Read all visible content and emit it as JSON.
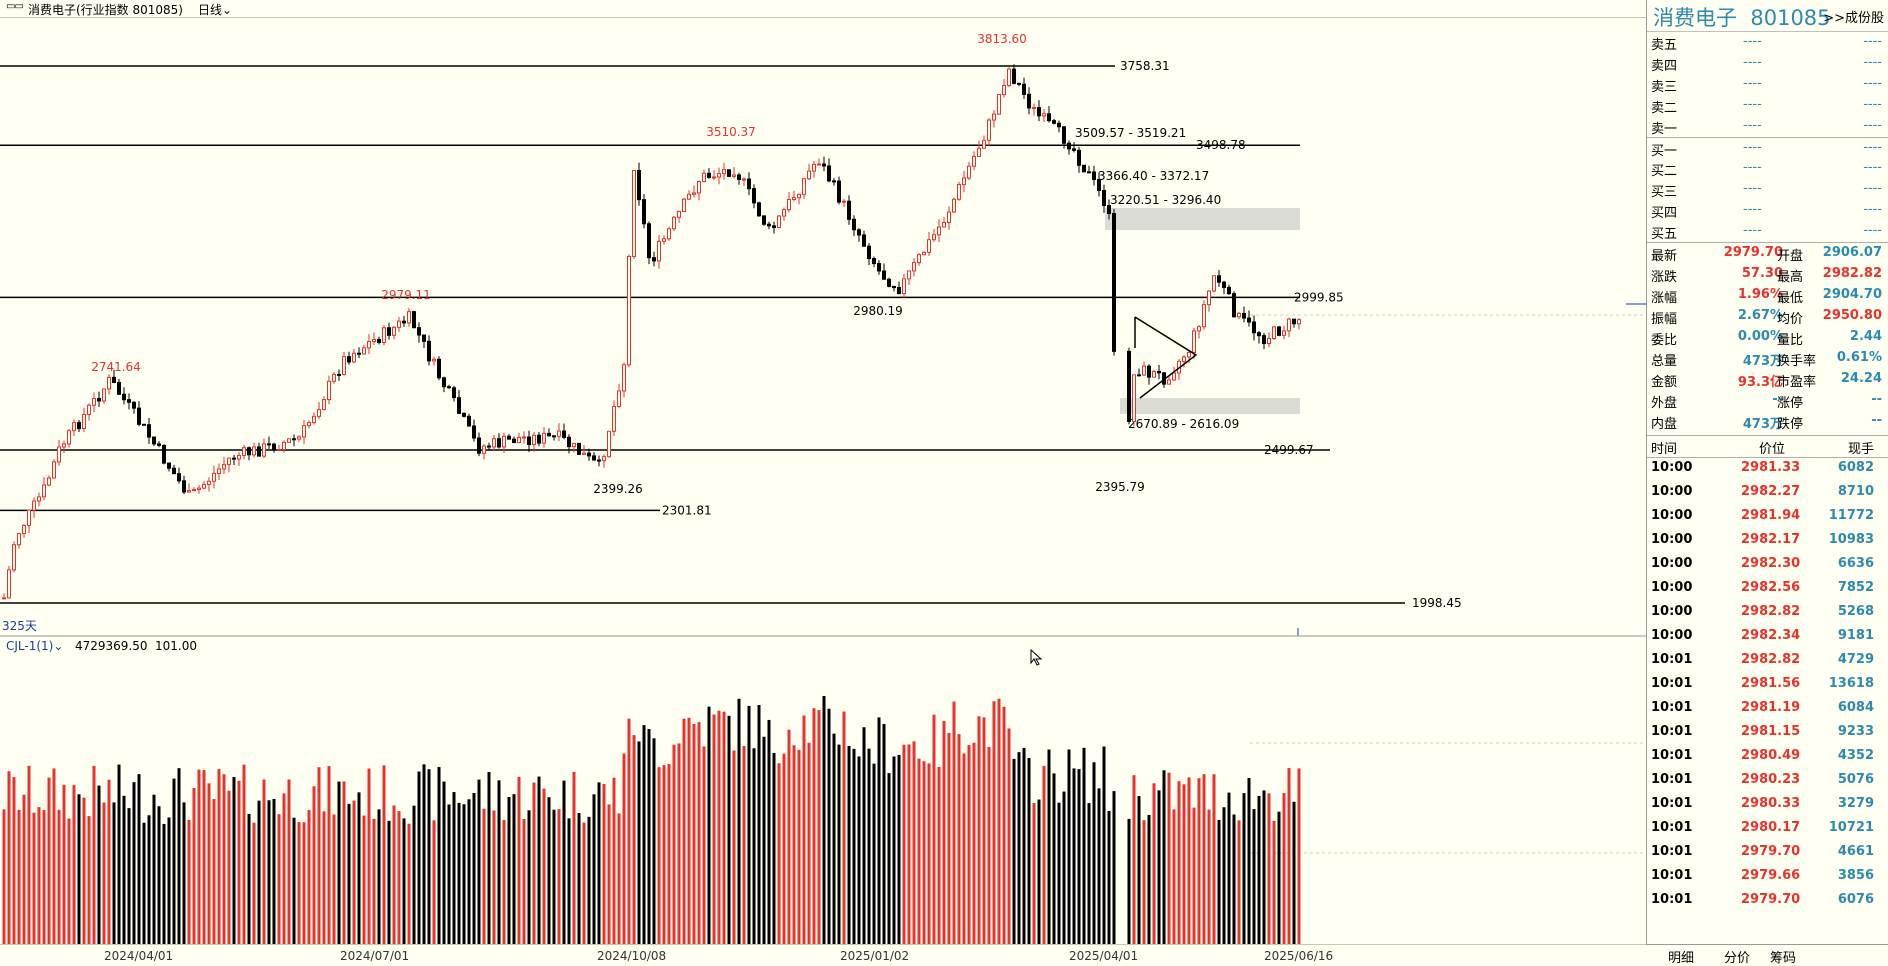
{
  "window": {
    "icon": "layout-icon",
    "title": "消费电子(行业指数 801085)",
    "period": "日线"
  },
  "chart": {
    "days_label": "325天",
    "levels": [
      {
        "value": 3758.31,
        "label": "3758.31"
      },
      {
        "value": 3498.78,
        "label": "3498.78"
      },
      {
        "value": 2999.85,
        "label": "2999.85"
      },
      {
        "value": 2499.67,
        "label": "2499.67"
      },
      {
        "value": 2301.81,
        "label": "2301.81"
      },
      {
        "value": 1998.45,
        "label": "1998.45"
      }
    ],
    "peaks": [
      {
        "label": "3813.60",
        "color": "#e8322d"
      },
      {
        "label": "3510.37",
        "color": "#e8322d"
      },
      {
        "label": "2979.11",
        "color": "#e8322d"
      },
      {
        "label": "2741.64",
        "color": "#e8322d"
      },
      {
        "label": "2980.19",
        "color": "#000"
      },
      {
        "label": "2399.26",
        "color": "#000"
      },
      {
        "label": "2395.79",
        "color": "#000"
      }
    ],
    "zones": [
      {
        "label": "3509.57 - 3519.21"
      },
      {
        "label": "3366.40 - 3372.17"
      },
      {
        "label": "3220.51 - 3296.40"
      },
      {
        "label": "2670.89 - 2616.09"
      }
    ],
    "indicator": {
      "name": "CJL-1(1)",
      "value1": "4729369.50",
      "value2": "101.00"
    },
    "dates": [
      "2024/04/01",
      "2024/07/01",
      "2024/10/08",
      "2025/01/02",
      "2025/04/01",
      "2025/06/16"
    ]
  },
  "side": {
    "name": "消费电子",
    "code": "801085",
    "link": "成份股",
    "orderbook": [
      {
        "k": "卖五",
        "p": "----",
        "v": "----"
      },
      {
        "k": "卖四",
        "p": "----",
        "v": "----"
      },
      {
        "k": "卖三",
        "p": "----",
        "v": "----"
      },
      {
        "k": "卖二",
        "p": "----",
        "v": "----"
      },
      {
        "k": "卖一",
        "p": "----",
        "v": "----"
      },
      {
        "k": "买一",
        "p": "----",
        "v": "----"
      },
      {
        "k": "买二",
        "p": "----",
        "v": "----"
      },
      {
        "k": "买三",
        "p": "----",
        "v": "----"
      },
      {
        "k": "买四",
        "p": "----",
        "v": "----"
      },
      {
        "k": "买五",
        "p": "----",
        "v": "----"
      }
    ],
    "quote": [
      {
        "k1": "最新",
        "v1": "2979.70",
        "c1": "#e8322d",
        "k2": "开盘",
        "v2": "2906.07",
        "c2": "#2d8ab0"
      },
      {
        "k1": "涨跌",
        "v1": "57.30",
        "c1": "#e8322d",
        "k2": "最高",
        "v2": "2982.82",
        "c2": "#e8322d"
      },
      {
        "k1": "涨幅",
        "v1": "1.96%",
        "c1": "#e8322d",
        "k2": "最低",
        "v2": "2904.70",
        "c2": "#2d8ab0"
      },
      {
        "k1": "振幅",
        "v1": "2.67%",
        "c1": "#2d8ab0",
        "k2": "均价",
        "v2": "2950.80",
        "c2": "#e8322d"
      },
      {
        "k1": "委比",
        "v1": "0.00%",
        "c1": "#2d8ab0",
        "k2": "量比",
        "v2": "2.44",
        "c2": "#2d8ab0"
      },
      {
        "k1": "总量",
        "v1": "473万",
        "c1": "#2d8ab0",
        "k2": "换手率",
        "v2": "0.61%",
        "c2": "#2d8ab0"
      },
      {
        "k1": "金额",
        "v1": "93.3亿",
        "c1": "#e8322d",
        "k2": "市盈率",
        "v2": "24.24",
        "c2": "#2d8ab0"
      },
      {
        "k1": "外盘",
        "v1": "--",
        "c1": "#2d8ab0",
        "k2": "涨停",
        "v2": "--",
        "c2": "#2d8ab0"
      },
      {
        "k1": "内盘",
        "v1": "473万",
        "c1": "#2d8ab0",
        "k2": "跌停",
        "v2": "--",
        "c2": "#2d8ab0"
      }
    ],
    "ticks_header": {
      "time": "时间",
      "price": "价位",
      "vol": "现手"
    },
    "ticks": [
      {
        "t": "10:00",
        "p": "2981.33",
        "v": "6082"
      },
      {
        "t": "10:00",
        "p": "2982.27",
        "v": "8710"
      },
      {
        "t": "10:00",
        "p": "2981.94",
        "v": "11772"
      },
      {
        "t": "10:00",
        "p": "2982.17",
        "v": "10983"
      },
      {
        "t": "10:00",
        "p": "2982.30",
        "v": "6636"
      },
      {
        "t": "10:00",
        "p": "2982.56",
        "v": "7852"
      },
      {
        "t": "10:00",
        "p": "2982.82",
        "v": "5268"
      },
      {
        "t": "10:00",
        "p": "2982.34",
        "v": "9181"
      },
      {
        "t": "10:01",
        "p": "2982.82",
        "v": "4729"
      },
      {
        "t": "10:01",
        "p": "2981.56",
        "v": "13618"
      },
      {
        "t": "10:01",
        "p": "2981.19",
        "v": "6084"
      },
      {
        "t": "10:01",
        "p": "2981.15",
        "v": "9233"
      },
      {
        "t": "10:01",
        "p": "2980.49",
        "v": "4352"
      },
      {
        "t": "10:01",
        "p": "2980.23",
        "v": "5076"
      },
      {
        "t": "10:01",
        "p": "2980.33",
        "v": "3279"
      },
      {
        "t": "10:01",
        "p": "2980.17",
        "v": "10721"
      },
      {
        "t": "10:01",
        "p": "2979.70",
        "v": "4661"
      },
      {
        "t": "10:01",
        "p": "2979.66",
        "v": "3856"
      },
      {
        "t": "10:01",
        "p": "2979.70",
        "v": "6076"
      }
    ],
    "tabs": [
      "明细",
      "分价",
      "筹码"
    ]
  }
}
